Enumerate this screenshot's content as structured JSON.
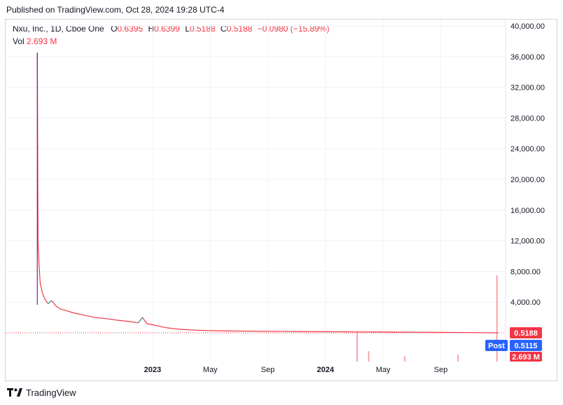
{
  "header": {
    "published": "Published on TradingView.com, Oct 28, 2024 19:28 UTC-4"
  },
  "legend": {
    "symbol": "Nxu, Inc., 1D, Cboe One",
    "o_label": "O",
    "o_value": "0.6395",
    "h_label": "H",
    "h_value": "0.6399",
    "l_label": "L",
    "l_value": "0.5188",
    "c_label": "C",
    "c_value": "0.5188",
    "change": "−0.0980 (−15.89%)",
    "vol_label": "Vol",
    "vol_value": "2.693 M"
  },
  "tags": {
    "last_price": "0.5188",
    "post_label": "Post",
    "post_price": "0.5115",
    "volume": "2.693 M"
  },
  "footer": {
    "brand": "TradingView"
  },
  "colors": {
    "up": "#089981",
    "down": "#f23645",
    "post": "#2962ff",
    "grid": "#f0f3fa",
    "text": "#131722",
    "border": "#d1d4dc"
  },
  "chart_data": {
    "type": "line",
    "title": "Nxu, Inc., 1D, Cboe One",
    "ylim": [
      0,
      40000
    ],
    "y_ticks": [
      "4,000.00",
      "8,000.00",
      "12,000.00",
      "16,000.00",
      "20,000.00",
      "24,000.00",
      "28,000.00",
      "32,000.00",
      "36,000.00",
      "40,000.00"
    ],
    "y_tick_values": [
      4000,
      8000,
      12000,
      16000,
      20000,
      24000,
      28000,
      32000,
      36000,
      40000
    ],
    "x_ticks": [
      {
        "label": "2023",
        "t": 12.0,
        "bold": true
      },
      {
        "label": "May",
        "t": 16.0,
        "bold": false
      },
      {
        "label": "Sep",
        "t": 20.0,
        "bold": false
      },
      {
        "label": "2024",
        "t": 24.0,
        "bold": true
      },
      {
        "label": "May",
        "t": 28.0,
        "bold": false
      },
      {
        "label": "Sep",
        "t": 32.0,
        "bold": false
      }
    ],
    "xlim": [
      1.8,
      36.5
    ],
    "series": [
      {
        "kind": "price",
        "points": [
          [
            4.0,
            36500
          ],
          [
            4.05,
            12000
          ],
          [
            4.12,
            9000
          ],
          [
            4.2,
            6500
          ],
          [
            4.35,
            5200
          ],
          [
            4.55,
            4300
          ],
          [
            4.75,
            3800
          ],
          [
            5.0,
            4200
          ],
          [
            5.3,
            3500
          ],
          [
            5.6,
            3100
          ],
          [
            6.0,
            2900
          ],
          [
            6.5,
            2600
          ],
          [
            7.0,
            2400
          ],
          [
            7.5,
            2200
          ],
          [
            8.0,
            2000
          ],
          [
            8.5,
            1900
          ],
          [
            9.0,
            1800
          ],
          [
            9.5,
            1650
          ],
          [
            10.0,
            1550
          ],
          [
            10.5,
            1450
          ],
          [
            11.0,
            1300
          ],
          [
            11.3,
            2000
          ],
          [
            11.6,
            1200
          ],
          [
            12.0,
            1050
          ],
          [
            12.5,
            850
          ],
          [
            13.0,
            650
          ],
          [
            14.0,
            450
          ],
          [
            15.0,
            350
          ],
          [
            16.0,
            280
          ],
          [
            18.0,
            230
          ],
          [
            20.0,
            200
          ],
          [
            22.0,
            170
          ],
          [
            24.0,
            150
          ],
          [
            26.0,
            120
          ],
          [
            28.0,
            100
          ],
          [
            30.0,
            80
          ],
          [
            32.0,
            60
          ],
          [
            34.0,
            30
          ],
          [
            35.0,
            20
          ],
          [
            35.5,
            0.6395
          ],
          [
            36.0,
            0.5188
          ]
        ]
      },
      {
        "kind": "volume",
        "spikes": [
          {
            "t": 26.2,
            "v": 0.35
          },
          {
            "t": 27.0,
            "v": 0.12
          },
          {
            "t": 29.5,
            "v": 0.06
          },
          {
            "t": 33.2,
            "v": 0.08
          },
          {
            "t": 35.9,
            "v": 1.0
          }
        ]
      }
    ]
  }
}
